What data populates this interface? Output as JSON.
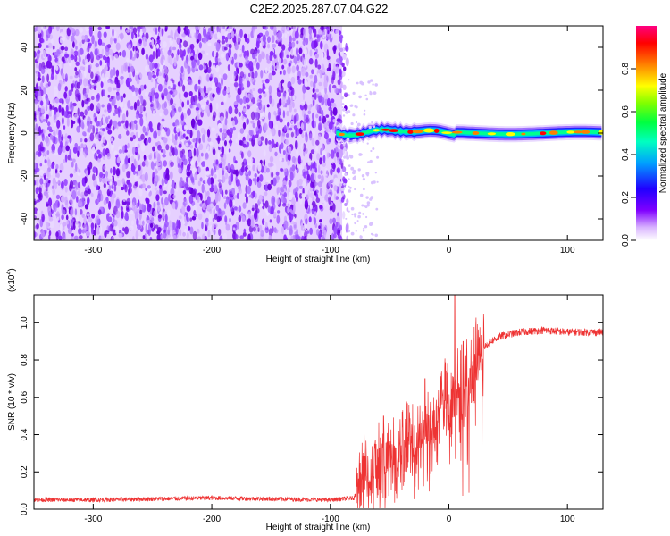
{
  "figure_title": "C2E2.2025.287.07.04.G22",
  "chart_data": [
    {
      "type": "heatmap",
      "xlabel": "Height of straight line (km)",
      "ylabel": "Frequency (Hz)",
      "xlim": [
        -350,
        130
      ],
      "ylim": [
        -50,
        50
      ],
      "xticks": [
        -300,
        -200,
        -100,
        0,
        100
      ],
      "yticks": [
        -40,
        -20,
        0,
        20,
        40
      ],
      "noise_region_x": [
        -350,
        -90
      ],
      "signal_region_x": [
        -95,
        130
      ],
      "signal_center_freq": 0,
      "colorbar": {
        "label": "Normalized spectral amplitude",
        "range": [
          0,
          1
        ],
        "ticks": [
          "0.0",
          "0.2",
          "0.4",
          "0.6",
          "0.8"
        ],
        "colormap": [
          "#ffffff",
          "#8000ff",
          "#0000ff",
          "#00c0ff",
          "#00ff80",
          "#80ff00",
          "#ffff00",
          "#ff8000",
          "#ff0000",
          "#ff0080"
        ]
      }
    },
    {
      "type": "line",
      "xlabel": "Height of straight line (km)",
      "ylabel": "SNR (10 * v/v)",
      "y_scale_label": "(x10",
      "y_scale_exponent": "4",
      "xlim": [
        -350,
        130
      ],
      "ylim": [
        0,
        1.15
      ],
      "xticks": [
        -300,
        -200,
        -100,
        0,
        100
      ],
      "yticks": [
        "0.0",
        "0.2",
        "0.4",
        "0.6",
        "0.8",
        "1.0"
      ],
      "series": [
        {
          "name": "SNR",
          "color": "#ee3333",
          "profile": [
            [
              -350,
              0.05
            ],
            [
              -300,
              0.05
            ],
            [
              -250,
              0.055
            ],
            [
              -200,
              0.06
            ],
            [
              -150,
              0.055
            ],
            [
              -100,
              0.05
            ],
            [
              -80,
              0.06
            ],
            [
              -75,
              0.15
            ],
            [
              -60,
              0.22
            ],
            [
              -50,
              0.26
            ],
            [
              -40,
              0.3
            ],
            [
              -30,
              0.35
            ],
            [
              -20,
              0.4
            ],
            [
              -15,
              0.45
            ],
            [
              -10,
              0.5
            ],
            [
              -5,
              0.6
            ],
            [
              0,
              0.55
            ],
            [
              5,
              0.62
            ],
            [
              10,
              0.65
            ],
            [
              15,
              0.68
            ],
            [
              20,
              0.75
            ],
            [
              25,
              0.82
            ],
            [
              30,
              0.87
            ],
            [
              35,
              0.9
            ],
            [
              45,
              0.93
            ],
            [
              60,
              0.95
            ],
            [
              80,
              0.96
            ],
            [
              100,
              0.95
            ],
            [
              130,
              0.95
            ]
          ],
          "spikes": [
            [
              -72,
              0.3
            ],
            [
              -55,
              0.5
            ],
            [
              -20,
              0.7
            ],
            [
              5,
              1.15
            ],
            [
              12,
              0.9
            ]
          ]
        }
      ]
    }
  ]
}
